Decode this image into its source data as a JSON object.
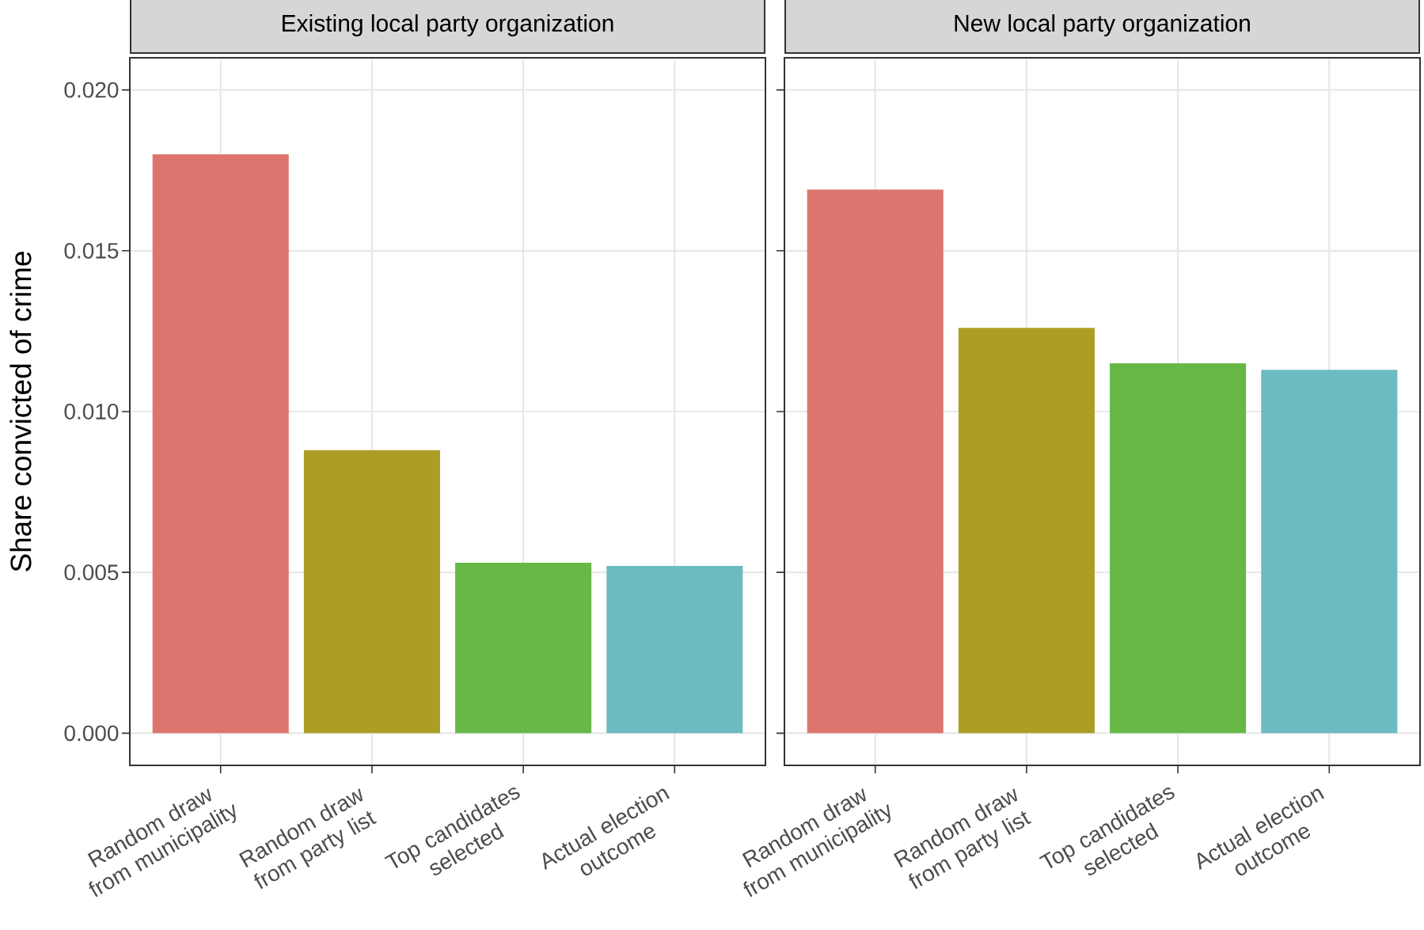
{
  "chart_data": [
    {
      "type": "bar",
      "title": "Existing local party organization",
      "ylabel": "Share convicted of crime",
      "categories": [
        "Random draw from municipality",
        "Random draw from party list",
        "Top candidates selected",
        "Actual election outcome"
      ],
      "values": [
        0.018,
        0.0088,
        0.0053,
        0.0052
      ],
      "colors": [
        "#dc756d",
        "#ac9d25",
        "#67b846",
        "#6cbbc1"
      ],
      "ylim": [
        -0.001,
        0.021
      ],
      "yticks": [
        {
          "value": 0,
          "label": "0.000"
        },
        {
          "value": 0.005,
          "label": "0.005"
        },
        {
          "value": 0.01,
          "label": "0.010"
        },
        {
          "value": 0.015,
          "label": "0.015"
        },
        {
          "value": 0.02,
          "label": "0.020"
        }
      ],
      "grid": true
    },
    {
      "type": "bar",
      "title": "New local party organization",
      "categories": [
        "Random draw from municipality",
        "Random draw from party list",
        "Top candidates selected",
        "Actual election outcome"
      ],
      "values": [
        0.0169,
        0.0126,
        0.0115,
        0.0113
      ],
      "colors": [
        "#dc756d",
        "#ac9d25",
        "#67b846",
        "#6cbbc1"
      ],
      "ylim": [
        -0.001,
        0.021
      ],
      "yticks": [
        {
          "value": 0,
          "label": null
        },
        {
          "value": 0.005,
          "label": null
        },
        {
          "value": 0.01,
          "label": null
        },
        {
          "value": 0.015,
          "label": null
        },
        {
          "value": 0.02,
          "label": null
        }
      ],
      "grid": true,
      "tick_labels": "x"
    }
  ]
}
